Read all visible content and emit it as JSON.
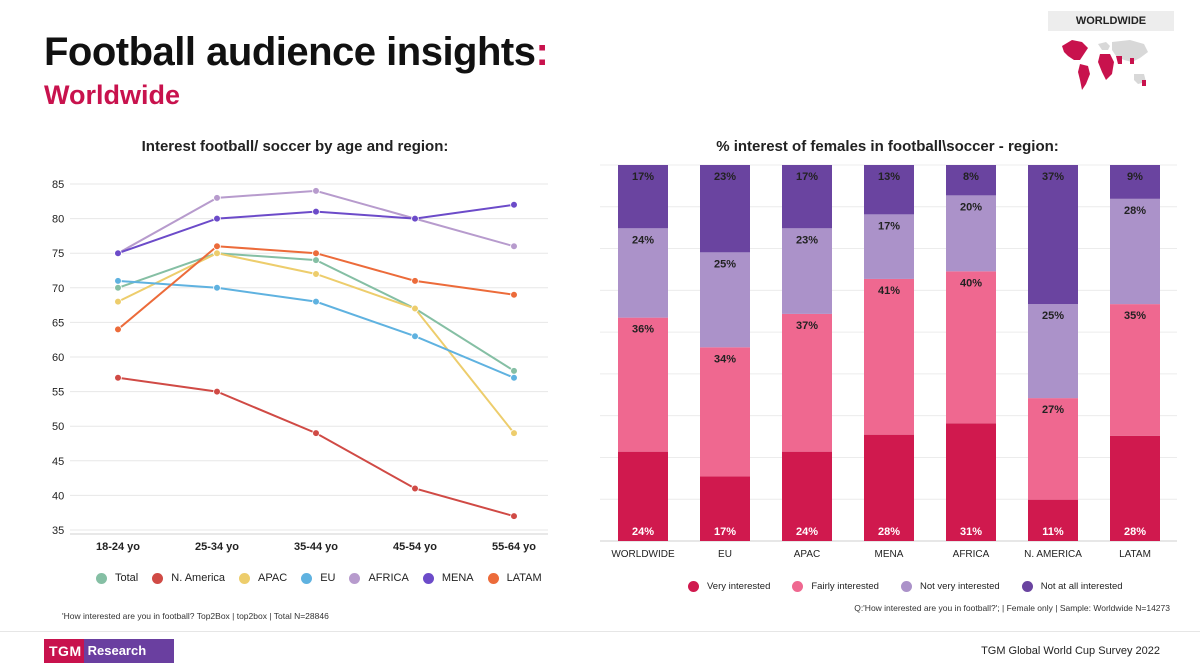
{
  "header": {
    "title": "Football audience insights",
    "title_colon": ":",
    "subtitle": "Worldwide",
    "region_badge": "WORLDWIDE"
  },
  "colors": {
    "brand": "#c8124d",
    "purple": "#6a3fa0"
  },
  "chart_data": [
    {
      "type": "line",
      "title": "Interest football/ soccer by age and region:",
      "categories": [
        "18-24 yo",
        "25-34 yo",
        "35-44 yo",
        "45-54 yo",
        "55-64 yo"
      ],
      "y_ticks": [
        85,
        80,
        75,
        70,
        65,
        60,
        55,
        50,
        45,
        40,
        35
      ],
      "ylim": [
        35,
        85
      ],
      "grid": true,
      "legend_position": "bottom",
      "series": [
        {
          "name": "Total",
          "color": "#85bfa4",
          "values": [
            70,
            75,
            74,
            67,
            58
          ]
        },
        {
          "name": "N. America",
          "color": "#d04a45",
          "values": [
            57,
            55,
            49,
            41,
            37
          ]
        },
        {
          "name": "APAC",
          "color": "#edcd6c",
          "values": [
            68,
            75,
            72,
            67,
            49
          ]
        },
        {
          "name": "EU",
          "color": "#5fb2e0",
          "values": [
            71,
            70,
            68,
            63,
            57
          ]
        },
        {
          "name": "AFRICA",
          "color": "#b79bcd",
          "values": [
            75,
            83,
            84,
            80,
            76
          ]
        },
        {
          "name": "MENA",
          "color": "#6c4bc9",
          "values": [
            75,
            80,
            81,
            80,
            82
          ]
        },
        {
          "name": "LATAM",
          "color": "#ec6b3a",
          "values": [
            64,
            76,
            75,
            71,
            69
          ]
        }
      ]
    },
    {
      "type": "bar",
      "stacked": true,
      "title": "% interest of females in football\\soccer -  region:",
      "categories": [
        "WORLDWIDE",
        "EU",
        "APAC",
        "MENA",
        "AFRICA",
        "N. AMERICA",
        "LATAM"
      ],
      "legend_position": "bottom",
      "series": [
        {
          "name": "Very interested",
          "color": "#d0194e",
          "values": [
            24,
            17,
            24,
            28,
            31,
            11,
            28
          ]
        },
        {
          "name": "Fairly interested",
          "color": "#ef6890",
          "values": [
            36,
            34,
            37,
            41,
            40,
            27,
            35
          ]
        },
        {
          "name": "Not very interested",
          "color": "#ab92c9",
          "values": [
            24,
            25,
            23,
            17,
            20,
            25,
            28
          ]
        },
        {
          "name": "Not at all interested",
          "color": "#6a44a0",
          "values": [
            17,
            23,
            17,
            13,
            8,
            37,
            9
          ]
        }
      ]
    }
  ],
  "footnotes": {
    "left": "'How interested are you in football? Top2Box |  top2box | Total N=28846",
    "right": "Q:'How interested are you in football?'; | Female only | Sample: Worldwide N=14273"
  },
  "footer": {
    "logo_left": "TGM",
    "logo_right": "Research",
    "survey": "TGM Global World Cup Survey 2022"
  }
}
